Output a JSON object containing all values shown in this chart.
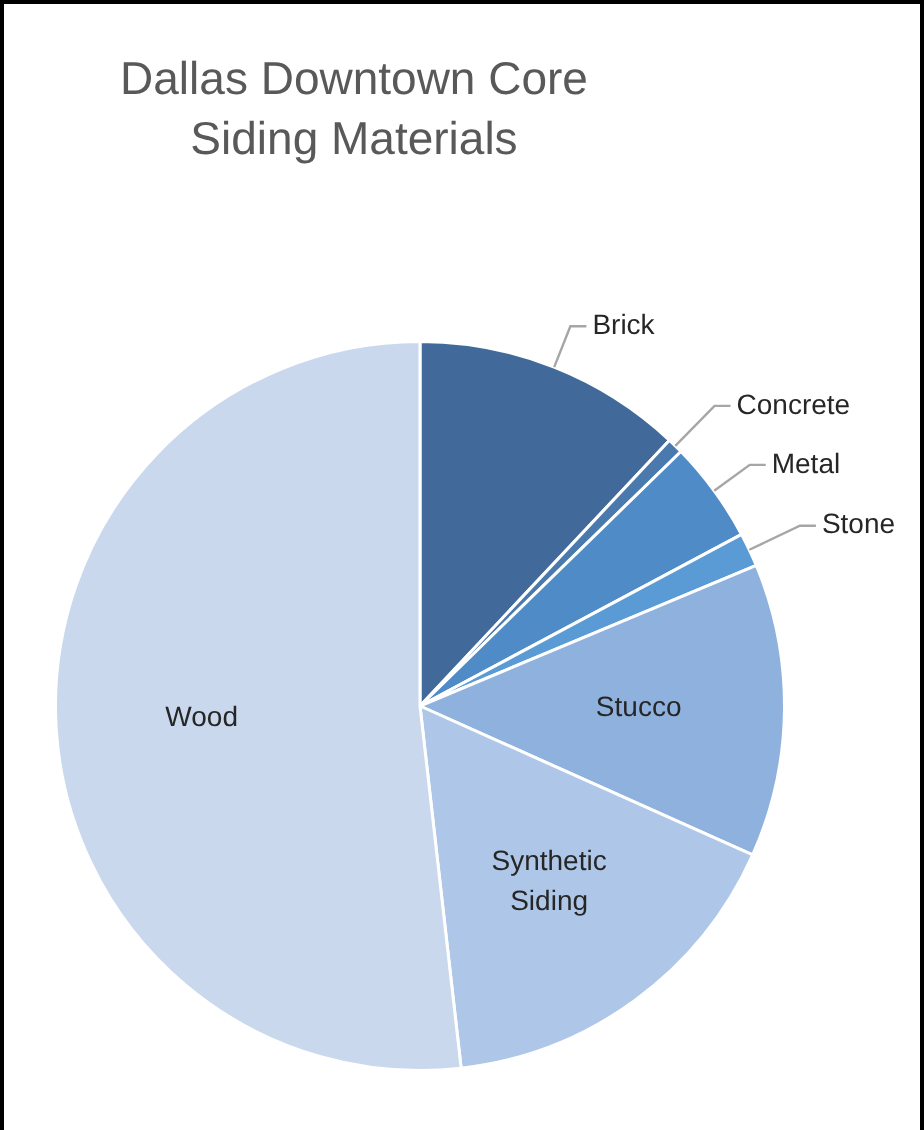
{
  "chart_data": {
    "type": "pie",
    "title": "Dallas Downtown Core Siding Materials",
    "categories": [
      "Brick",
      "Concrete",
      "Metal",
      "Stone",
      "Stucco",
      "Synthetic Siding",
      "Wood"
    ],
    "values": [
      12,
      0.7,
      4.5,
      1.5,
      13,
      16.5,
      51.8
    ],
    "colors": [
      "#41699a",
      "#4a79ad",
      "#4f8bc6",
      "#5b9bd5",
      "#8fb1de",
      "#aec6e7",
      "#c9d8ed"
    ],
    "legend": false
  }
}
